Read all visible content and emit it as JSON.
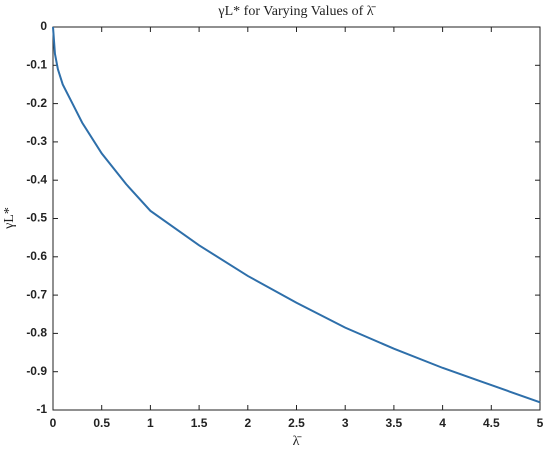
{
  "chart_data": {
    "type": "line",
    "title": "γL* for Varying Values of λ̄",
    "xlabel": "λ̄",
    "ylabel": "γL*",
    "x": [
      0,
      0.02,
      0.05,
      0.1,
      0.2,
      0.3,
      0.5,
      0.75,
      1,
      1.5,
      2,
      2.5,
      3,
      3.5,
      4,
      4.5,
      5
    ],
    "series": [
      {
        "color": "#2e6faa",
        "values": [
          0,
          -0.07,
          -0.11,
          -0.15,
          -0.2,
          -0.25,
          -0.33,
          -0.41,
          -0.48,
          -0.57,
          -0.65,
          -0.72,
          -0.785,
          -0.84,
          -0.89,
          -0.935,
          -0.98
        ]
      }
    ],
    "xlim": [
      0,
      5
    ],
    "xticks": [
      0,
      0.5,
      1,
      1.5,
      2,
      2.5,
      3,
      3.5,
      4,
      4.5,
      5
    ],
    "ylim": [
      -1,
      0
    ],
    "yticks": [
      0,
      -0.1,
      -0.2,
      -0.3,
      -0.4,
      -0.5,
      -0.6,
      -0.7,
      -0.8,
      -0.9,
      -1
    ],
    "grid": false
  }
}
